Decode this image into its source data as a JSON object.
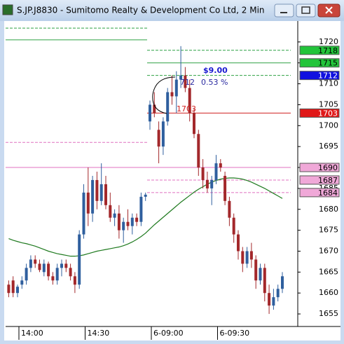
{
  "window": {
    "title": "S.JP.J8830 - Sumitomo Realty & Development Co Ltd, 2 Min"
  },
  "chart_data": {
    "type": "candlestick",
    "categories": [
      null,
      null,
      "14:00",
      null,
      null,
      null,
      null,
      null,
      null,
      null,
      null,
      null,
      null,
      null,
      null,
      null,
      null,
      "14:30",
      null,
      null,
      null,
      null,
      null,
      null,
      null,
      null,
      null,
      null,
      null,
      null,
      null,
      null,
      "6-09:00",
      null,
      null,
      null,
      null,
      null,
      null,
      null,
      null,
      null,
      null,
      null,
      null,
      null,
      null,
      "6-09:30",
      null,
      null,
      null,
      null,
      null,
      null,
      null,
      null,
      null,
      null,
      null,
      null,
      null,
      null,
      null
    ],
    "open": [
      1662,
      1663,
      1660,
      1662,
      1663,
      1666,
      1668,
      1667,
      1665,
      1667,
      1664,
      1663,
      1666,
      1667,
      1666,
      1664,
      1662,
      1674,
      1684,
      1679,
      1687,
      1682,
      1686,
      1681,
      1678,
      1679,
      1675,
      1677,
      1676,
      1678,
      1677,
      1683,
      1701,
      1705,
      1699,
      1695,
      1701,
      1708,
      1707,
      1711,
      1712,
      1709,
      1703,
      1698,
      1690,
      1687,
      1685,
      1687,
      1691,
      1688,
      1682,
      1678,
      1674,
      1670,
      1667,
      1670,
      1668,
      1663,
      1666,
      1660,
      1657,
      1659,
      1661
    ],
    "high": [
      1663,
      1664,
      1662,
      1664,
      1667,
      1669,
      1669,
      1668,
      1668,
      1667.5,
      1665,
      1667,
      1668,
      1668,
      1667,
      1665,
      1675,
      1686,
      1690,
      1688,
      1689,
      1691,
      1688,
      1684,
      1680,
      1681,
      1678,
      1680,
      1679,
      1679,
      1684,
      1684,
      1706,
      1708,
      1701,
      1702,
      1709,
      1712,
      1713,
      1719,
      1714,
      1711,
      1704,
      1699,
      1692,
      1689,
      1688,
      1693,
      1692,
      1689,
      1683,
      1679,
      1675,
      1671,
      1671,
      1672,
      1669,
      1667,
      1667,
      1662,
      1661,
      1662,
      1665
    ],
    "low": [
      1659,
      1659,
      1659,
      1661,
      1662,
      1665,
      1666,
      1665,
      1664,
      1663,
      1662,
      1662,
      1664,
      1665,
      1663,
      1660,
      1661,
      1673,
      1676,
      1677,
      1680,
      1681,
      1680,
      1677,
      1676,
      1673,
      1672,
      1675,
      1674,
      1676,
      1676,
      1682,
      1699,
      1702,
      1691,
      1693,
      1700,
      1705,
      1703,
      1709,
      1708,
      1701,
      1697,
      1688,
      1685,
      1684,
      1681,
      1686,
      1689,
      1681,
      1676,
      1672,
      1668,
      1665,
      1666,
      1666,
      1661,
      1662,
      1658,
      1655,
      1656,
      1658,
      1660
    ],
    "close": [
      1660,
      1660,
      1661.5,
      1663,
      1666,
      1668,
      1667,
      1665.5,
      1667,
      1664,
      1663,
      1666,
      1667,
      1666,
      1664,
      1662,
      1674,
      1684,
      1679,
      1687,
      1682,
      1686,
      1681,
      1678,
      1679,
      1675,
      1677,
      1676,
      1678,
      1677,
      1683,
      1683.5,
      1705,
      1703,
      1695,
      1701,
      1708,
      1707,
      1711,
      1712,
      1709,
      1703,
      1698,
      1690,
      1687,
      1685,
      1687,
      1691,
      1690,
      1682,
      1678,
      1674,
      1670,
      1667,
      1670,
      1668,
      1663,
      1666,
      1660,
      1657,
      1659,
      1661,
      1664
    ],
    "up_color": "#2f5f9e",
    "down_color": "#a3282b",
    "ma": [
      1673,
      1672.6,
      1672.3,
      1672,
      1671.8,
      1671.5,
      1671.2,
      1670.8,
      1670.4,
      1670,
      1669.7,
      1669.4,
      1669.2,
      1669,
      1668.8,
      1668.8,
      1668.9,
      1669.1,
      1669.4,
      1669.7,
      1670,
      1670.2,
      1670.4,
      1670.6,
      1670.8,
      1671,
      1671.3,
      1671.7,
      1672.2,
      1672.8,
      1673.5,
      1674.3,
      1675.3,
      1676.3,
      1677.2,
      1678.1,
      1679,
      1679.9,
      1680.8,
      1681.7,
      1682.5,
      1683.3,
      1684.1,
      1684.8,
      1685.4,
      1686,
      1686.5,
      1686.9,
      1687.2,
      1687.4,
      1687.5,
      1687.5,
      1687.4,
      1687.2,
      1686.9,
      1686.5,
      1686,
      1685.5,
      1685,
      1684.4,
      1683.8,
      1683.2,
      1682.6
    ],
    "ma_color": "#1f7a1f",
    "ylim": [
      1652,
      1725
    ],
    "yticks": [
      1655,
      1660,
      1665,
      1670,
      1675,
      1680,
      1685,
      1690,
      1695,
      1700,
      1705,
      1710,
      1715,
      1720
    ],
    "levels": [
      {
        "value": 1723.3,
        "color": "#2ea043",
        "dashed": true
      },
      {
        "value": 1720.5,
        "color": "#2ea043",
        "dashed": false
      },
      {
        "value": 1696,
        "color": "#e070c0",
        "dashed": true
      },
      {
        "value": 1690,
        "color": "#e070c0",
        "dashed": false
      },
      {
        "value": 1718,
        "color": "#2ea043",
        "dashed": true,
        "badge": "#22c43a"
      },
      {
        "value": 1715,
        "color": "#2ea043",
        "dashed": false,
        "badge": "#22c43a"
      },
      {
        "value": 1712,
        "color": "#2ea043",
        "dashed": true,
        "badge": "#1010e0"
      },
      {
        "value": 1703,
        "color": "#d02020",
        "dashed": false,
        "badge": "#e01818"
      },
      {
        "value": 1690,
        "color": "#e070c0",
        "dashed": false,
        "badge": "#f0a8d8"
      },
      {
        "value": 1687,
        "color": "#e070c0",
        "dashed": true,
        "badge": "#f0a8d8"
      },
      {
        "value": 1684,
        "color": "#e070c0",
        "dashed": true,
        "badge": "#f0a8d8"
      }
    ],
    "annotations": [
      "$9.00",
      "712",
      "0.53 %",
      "1703"
    ]
  }
}
